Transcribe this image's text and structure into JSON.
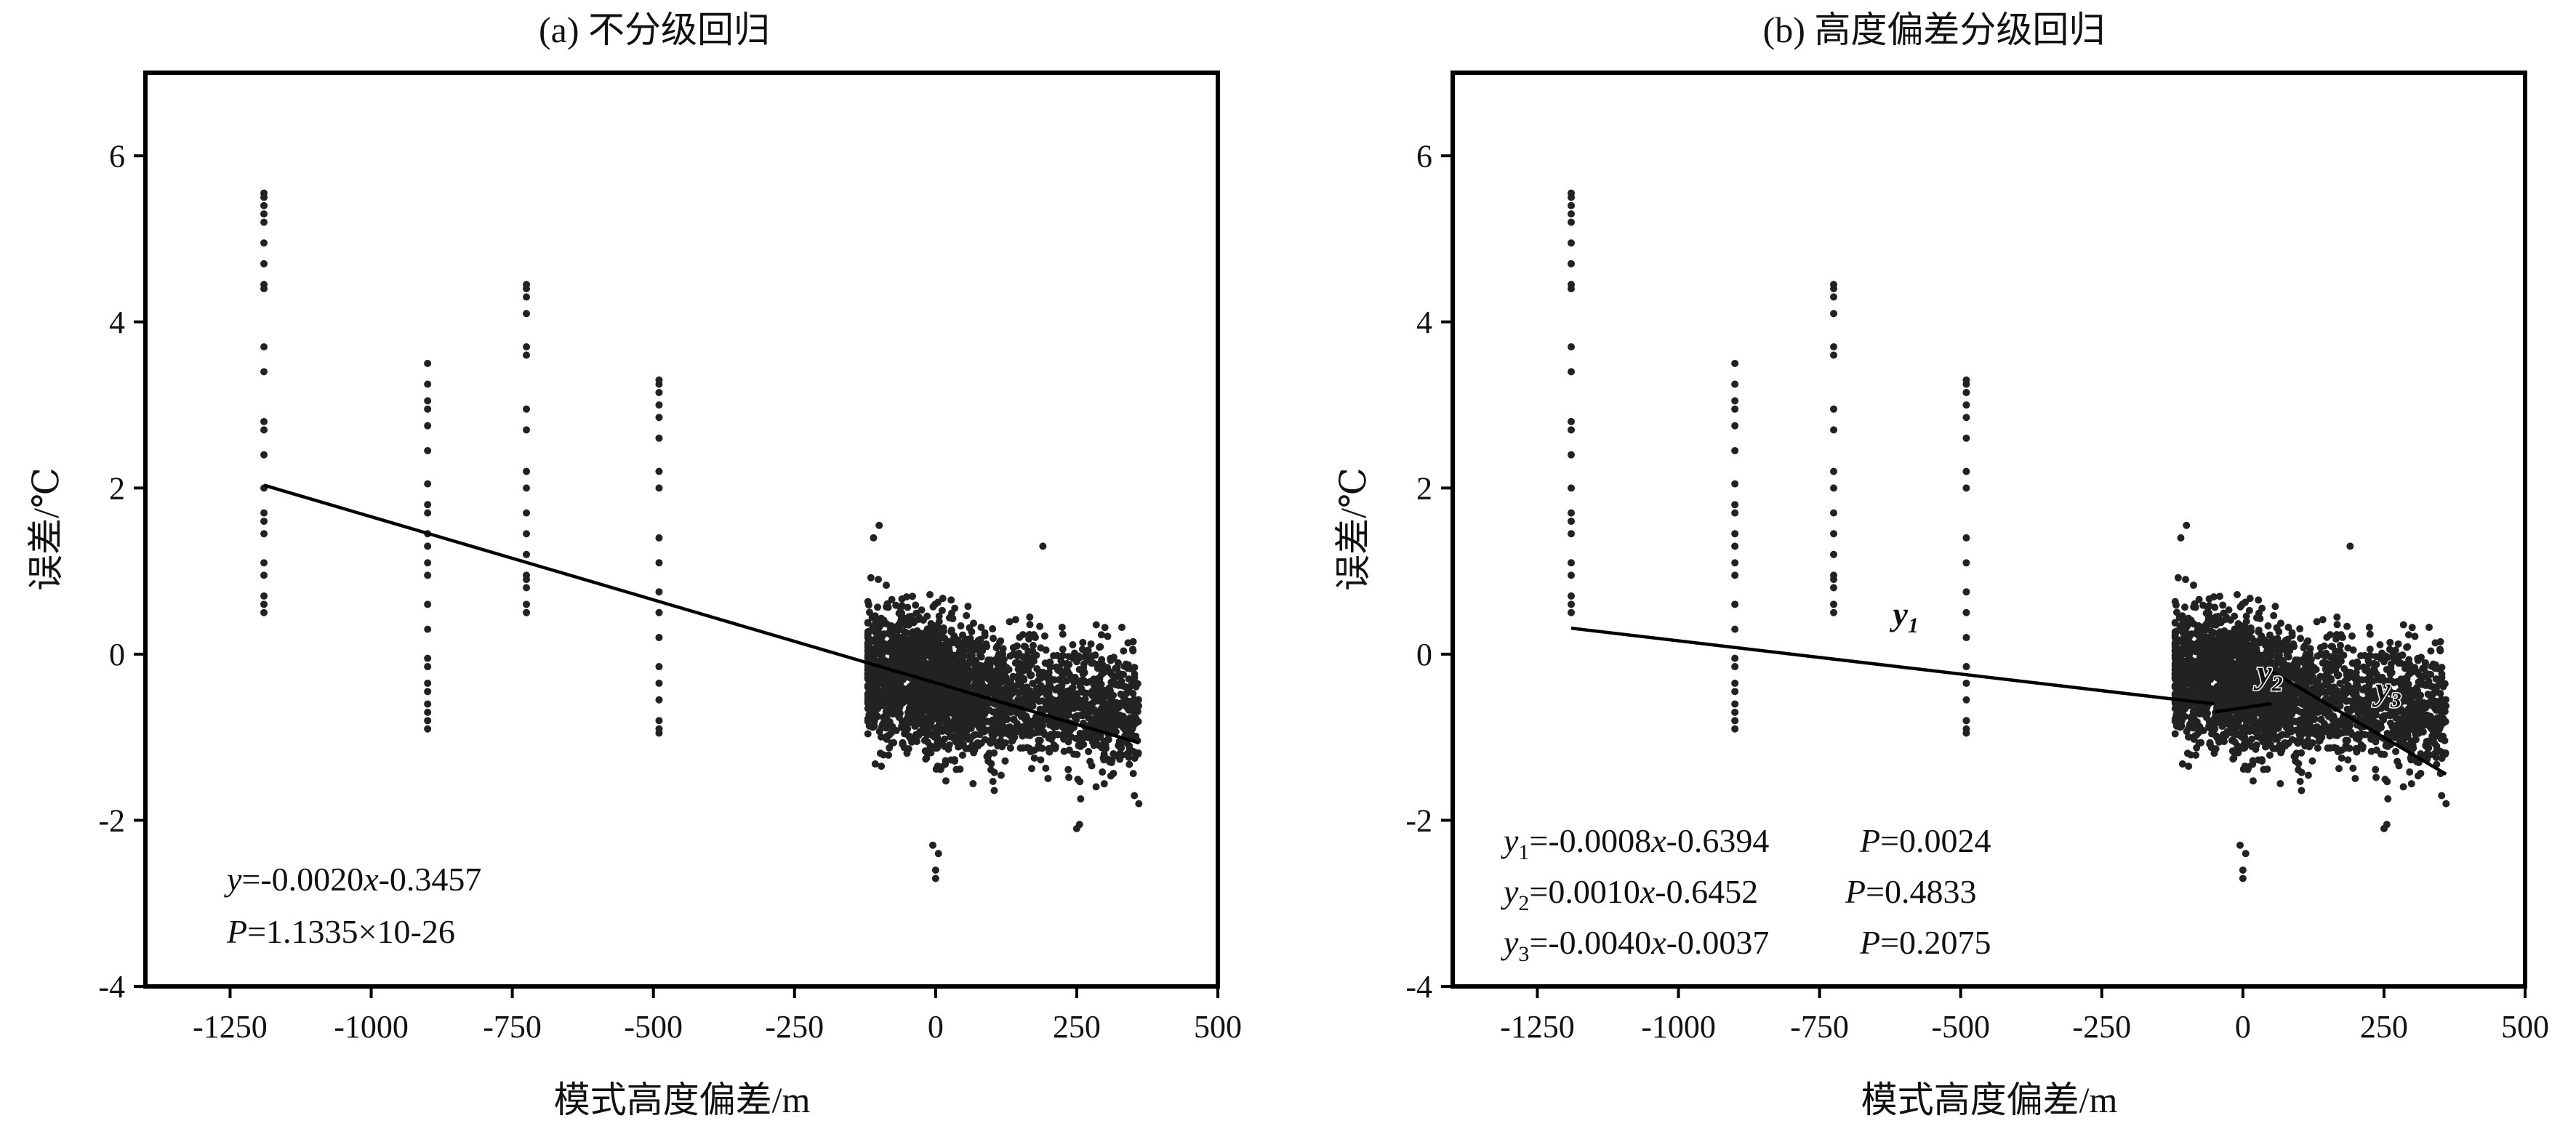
{
  "chart_data": [
    {
      "type": "scatter",
      "title": "(a) 不分级回归",
      "xlabel": "模式高度偏差/m",
      "ylabel": "误差/℃",
      "xlim": [
        -1400,
        500
      ],
      "ylim": [
        -4,
        7
      ],
      "x_ticks": [
        "-1250",
        "-1000",
        "-750",
        "-500",
        "-250",
        "0",
        "250",
        "500"
      ],
      "y_ticks": [
        "-4",
        "-2",
        "0",
        "2",
        "4",
        "6"
      ],
      "scatter_columns": [
        {
          "x": -1190,
          "y": [
            5.55,
            5.5,
            5.4,
            5.3,
            5.2,
            4.95,
            4.7,
            4.45,
            4.4,
            3.7,
            3.4,
            2.8,
            2.7,
            2.4,
            2.0,
            1.7,
            1.6,
            1.45,
            1.1,
            0.95,
            0.7,
            0.6,
            0.5
          ]
        },
        {
          "x": -900,
          "y": [
            3.5,
            3.25,
            3.05,
            2.95,
            2.75,
            2.45,
            2.05,
            1.8,
            1.7,
            1.45,
            1.3,
            1.1,
            0.95,
            0.6,
            0.3,
            -0.05,
            -0.15,
            -0.35,
            -0.45,
            -0.6,
            -0.7,
            -0.8,
            -0.9
          ]
        },
        {
          "x": -725,
          "y": [
            4.45,
            4.4,
            4.3,
            4.1,
            3.7,
            3.6,
            2.95,
            2.7,
            2.2,
            2.0,
            1.7,
            1.45,
            1.2,
            0.95,
            0.9,
            0.8,
            0.6,
            0.5
          ]
        },
        {
          "x": -490,
          "y": [
            3.3,
            3.25,
            3.15,
            3.0,
            2.85,
            2.6,
            2.2,
            2.0,
            1.4,
            1.1,
            0.75,
            0.5,
            0.2,
            -0.15,
            -0.35,
            -0.55,
            -0.8,
            -0.9,
            -0.95
          ]
        }
      ],
      "dense_cluster": {
        "x_range": [
          -120,
          360
        ],
        "y_range": [
          -2.7,
          1.55
        ],
        "note": "dense scatter of several thousand points"
      },
      "fit": {
        "x": [
          -1190,
          360
        ],
        "slope": -0.002,
        "intercept": -0.3457
      },
      "annotation": {
        "line1_var": "y",
        "line1_text": "=-0.0020",
        "line1_var2": "x",
        "line1_rest": "-0.3457",
        "line2_var": "P",
        "line2_text": "=1.1335×10-26"
      }
    },
    {
      "type": "scatter",
      "title": "(b) 高度偏差分级回归",
      "xlabel": "模式高度偏差/m",
      "ylabel": "误差/℃",
      "xlim": [
        -1400,
        500
      ],
      "ylim": [
        -4,
        7
      ],
      "x_ticks": [
        "-1250",
        "-1000",
        "-750",
        "-500",
        "-250",
        "0",
        "250",
        "500"
      ],
      "y_ticks": [
        "-4",
        "-2",
        "0",
        "2",
        "4",
        "6"
      ],
      "fits": [
        {
          "name": "y1",
          "x": [
            -1190,
            -50
          ],
          "slope": -0.0008,
          "intercept": -0.6394,
          "p": "0.0024"
        },
        {
          "name": "y2",
          "x": [
            -50,
            50
          ],
          "slope": 0.001,
          "intercept": -0.6452,
          "p": "0.4833"
        },
        {
          "name": "y3",
          "x": [
            50,
            360
          ],
          "slope": -0.004,
          "intercept": -0.0037,
          "p": "0.2075"
        }
      ],
      "line_labels": [
        {
          "text": "y",
          "sub": "1",
          "x": -620,
          "y": 0.35
        },
        {
          "text": "y",
          "sub": "2",
          "x": 25,
          "y": -0.35
        },
        {
          "text": "y",
          "sub": "3",
          "x": 235,
          "y": -0.55
        }
      ],
      "equations": [
        {
          "var": "y",
          "sub": "1",
          "eq": "=-0.0008",
          "x": "x",
          "rest": "-0.6394",
          "p_var": "P",
          "p": "=0.0024"
        },
        {
          "var": "y",
          "sub": "2",
          "eq": "=0.0010",
          "x": "x",
          "rest": "-0.6452",
          "p_var": "P",
          "p": "=0.4833"
        },
        {
          "var": "y",
          "sub": "3",
          "eq": "=-0.0040",
          "x": "x",
          "rest": "-0.0037",
          "p_var": "P",
          "p": "=0.2075"
        }
      ]
    }
  ]
}
